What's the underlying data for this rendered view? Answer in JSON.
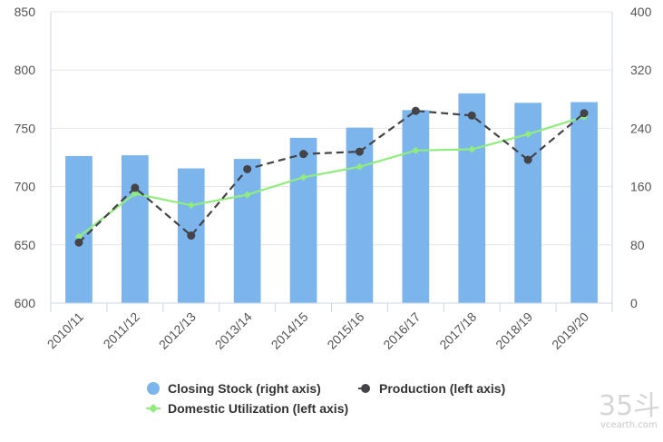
{
  "chart_data": {
    "type": "bar+line",
    "categories": [
      "2010/11",
      "2011/12",
      "2012/13",
      "2013/14",
      "2014/15",
      "2015/16",
      "2016/17",
      "2017/18",
      "2018/19",
      "2019/20"
    ],
    "left_axis": {
      "min": 600,
      "max": 850,
      "ticks": [
        600,
        650,
        700,
        750,
        800,
        850
      ]
    },
    "right_axis": {
      "min": 0,
      "max": 400,
      "ticks": [
        0,
        80,
        160,
        240,
        320,
        400
      ]
    },
    "series": [
      {
        "name": "Closing Stock (right axis)",
        "type": "bar",
        "axis": "right",
        "color": "#7cb5ec",
        "values": [
          202,
          203,
          185,
          198,
          227,
          241,
          265,
          288,
          275,
          276
        ]
      },
      {
        "name": "Production (left axis)",
        "type": "line",
        "axis": "left",
        "color": "#434348",
        "dashed": true,
        "values": [
          652,
          699,
          658,
          715,
          728,
          730,
          765,
          761,
          723,
          763
        ]
      },
      {
        "name": "Domestic Utilization (left axis)",
        "type": "line",
        "axis": "left",
        "color": "#90ed7d",
        "dashed": false,
        "values": [
          657,
          694,
          684,
          693,
          708,
          717,
          731,
          732,
          745,
          760
        ]
      }
    ],
    "grid": true,
    "legend_position": "bottom-center"
  },
  "watermark": {
    "big": "35斗",
    "small": "vcearth.com"
  }
}
